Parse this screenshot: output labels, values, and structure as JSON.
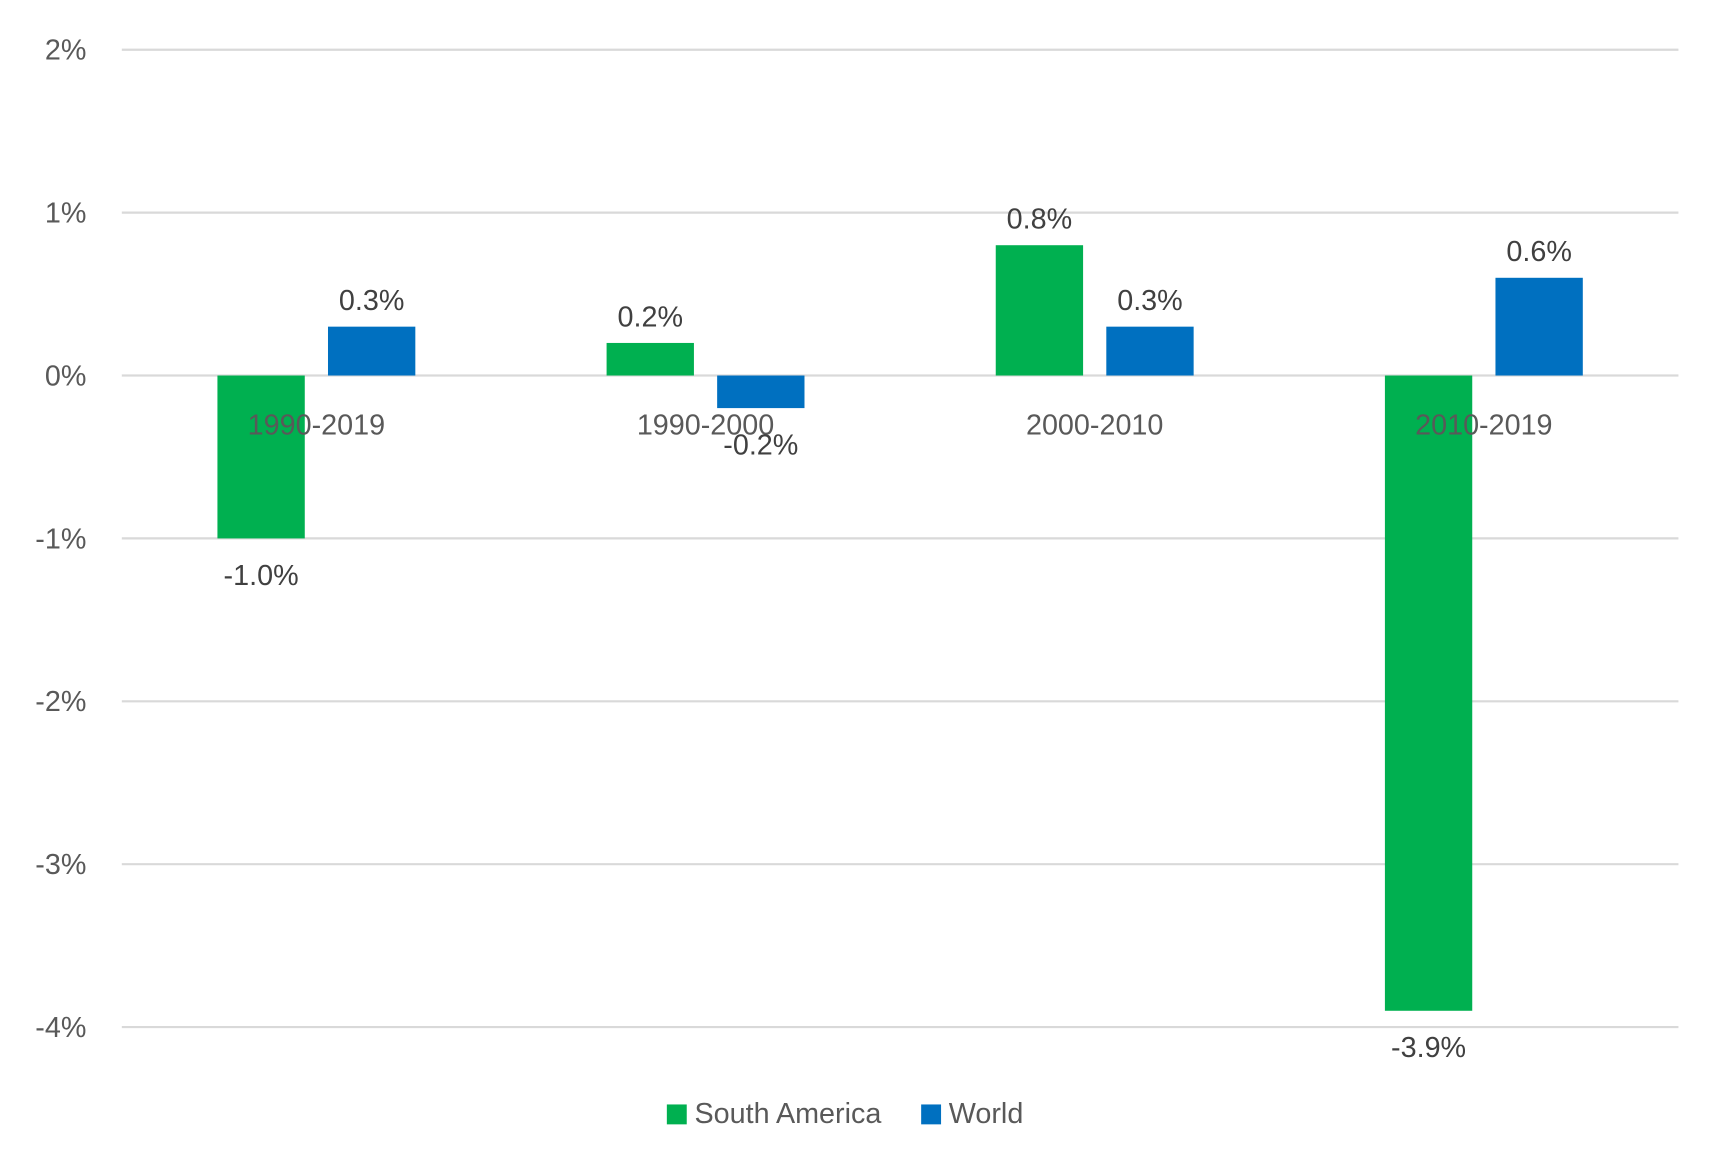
{
  "chart_data": {
    "type": "bar",
    "title": "",
    "xlabel": "",
    "ylabel": "",
    "categories": [
      "1990-2019",
      "1990-2000",
      "2000-2010",
      "2010-2019"
    ],
    "series": [
      {
        "name": "South America",
        "color": "#00B050",
        "values": [
          -1.0,
          0.2,
          0.8,
          -3.9
        ],
        "labels": [
          "-1.0%",
          "0.2%",
          "0.8%",
          "-3.9%"
        ]
      },
      {
        "name": "World",
        "color": "#0070C0",
        "values": [
          0.3,
          -0.2,
          0.3,
          0.6
        ],
        "labels": [
          "0.3%",
          "-0.2%",
          "0.3%",
          "0.6%"
        ]
      }
    ],
    "ylim": [
      -4,
      2
    ],
    "yticks": [
      2,
      1,
      0,
      -1,
      -2,
      -3,
      -4
    ],
    "ytick_labels": [
      "2%",
      "1%",
      "0%",
      "-1%",
      "-2%",
      "-3%",
      "-4%"
    ],
    "grid": true,
    "legend_position": "bottom"
  }
}
